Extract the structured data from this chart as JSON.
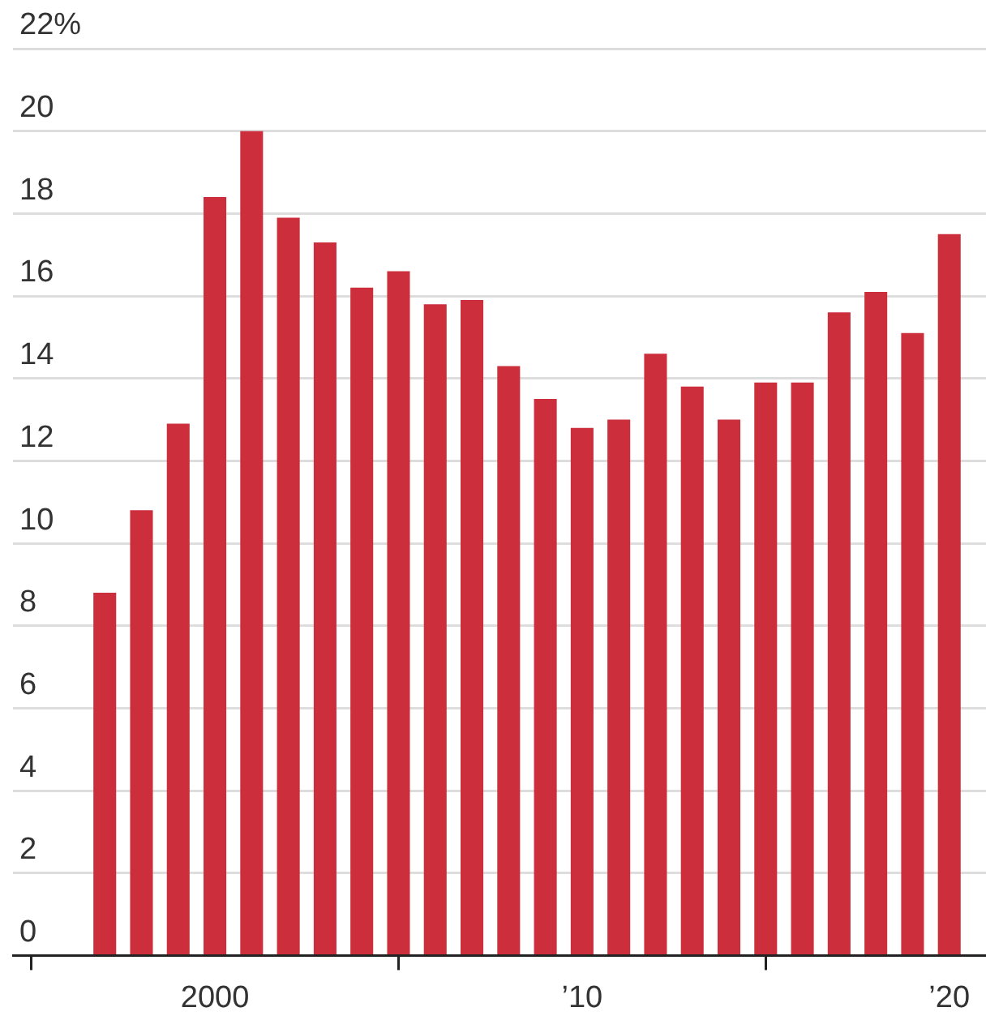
{
  "chart_data": {
    "type": "bar",
    "x": [
      1997,
      1998,
      1999,
      2000,
      2001,
      2002,
      2003,
      2004,
      2005,
      2006,
      2007,
      2008,
      2009,
      2010,
      2011,
      2012,
      2013,
      2014,
      2015,
      2016,
      2017,
      2018,
      2019,
      2020
    ],
    "values": [
      8.8,
      10.8,
      12.9,
      18.4,
      20.0,
      17.9,
      17.3,
      16.2,
      16.6,
      15.8,
      15.9,
      14.3,
      13.5,
      12.8,
      13.0,
      14.6,
      13.8,
      13.0,
      13.9,
      13.9,
      15.6,
      16.1,
      15.1,
      17.5
    ],
    "color": "#cc2f3b",
    "xlim": [
      1994.5,
      2021
    ],
    "xticks": [
      2000,
      {
        "value": 2010,
        "label": "’10"
      },
      {
        "value": 2020,
        "label": "’20"
      }
    ],
    "ylim": [
      0,
      22
    ],
    "yticks": [
      0,
      2,
      4,
      6,
      8,
      10,
      12,
      14,
      16,
      18,
      20,
      {
        "value": 22,
        "label": "22%"
      }
    ],
    "grid": "y"
  }
}
